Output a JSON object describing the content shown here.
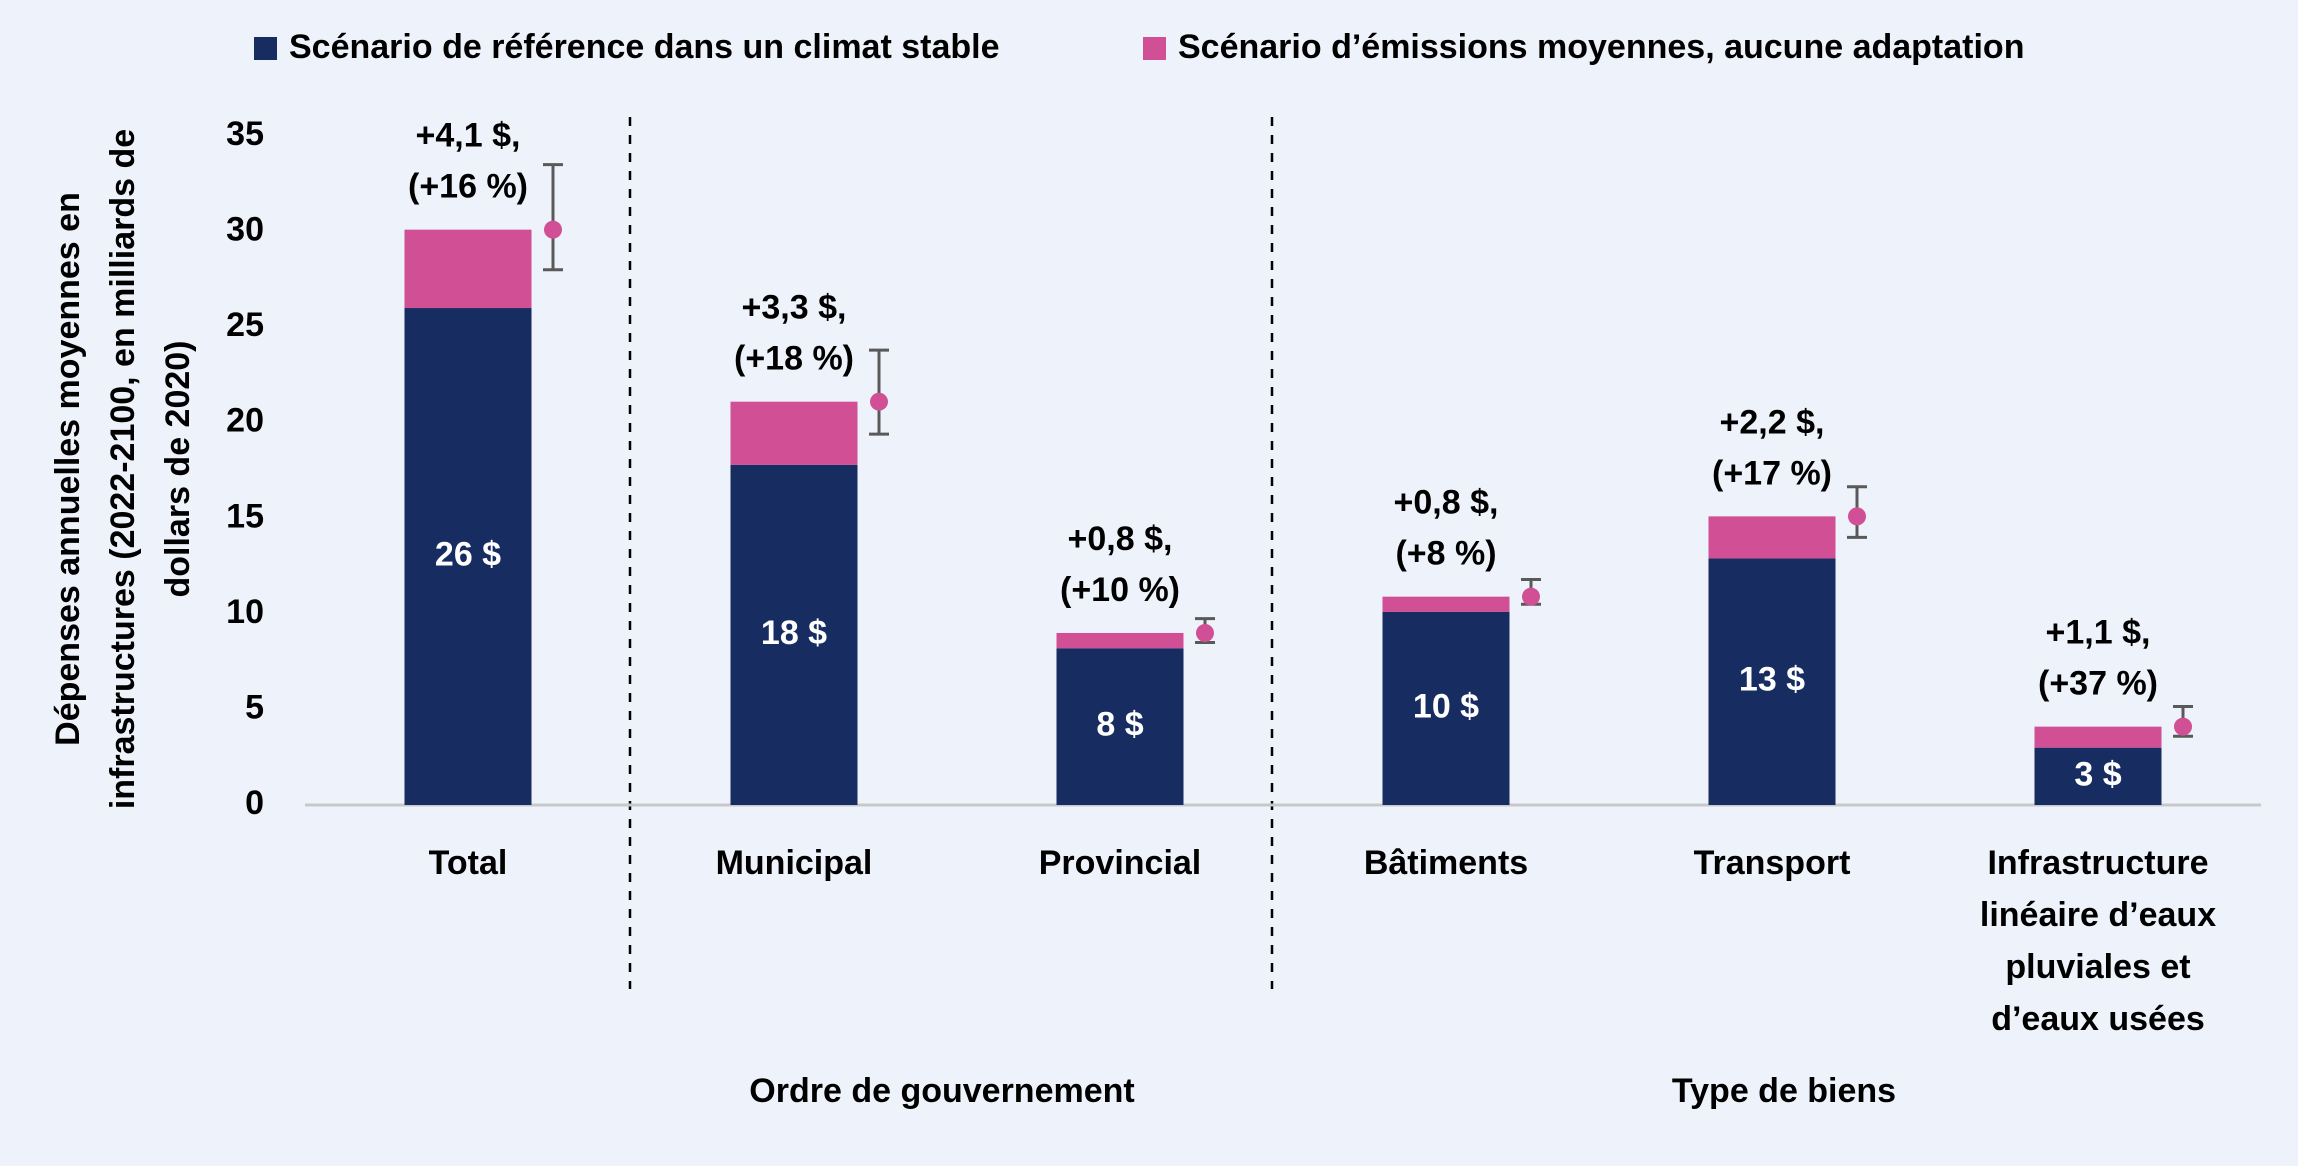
{
  "chart_data": {
    "type": "stacked_bar",
    "y_axis_label": [
      "Dépenses annuelles moyennes en",
      "infrastructures (2022-2100, en milliards de",
      "dollars de 2020)"
    ],
    "categories": [
      "Total",
      "Municipal",
      "Provincial",
      "Bâtiments",
      "Transport",
      "Infrastructure linéaire d’eaux pluviales et d’eaux usées"
    ],
    "group_labels": [
      "Ordre de gouvernement",
      "Type de biens"
    ],
    "series": [
      {
        "name": "Scénario de référence dans un climat stable",
        "color": "#172c61",
        "values": [
          26,
          17.8,
          8.2,
          10.1,
          12.9,
          3.0
        ],
        "value_labels": [
          "26 $",
          "18 $",
          "8 $",
          "10 $",
          "13 $",
          "3 $"
        ]
      },
      {
        "name": "Scénario d’émissions moyennes, aucune adaptation",
        "color": "#d14f94",
        "values": [
          4.1,
          3.3,
          0.8,
          0.8,
          2.2,
          1.1
        ],
        "value_labels": [
          "+4,1 $,",
          "+3,3 $,",
          "+0,8 $,",
          "+0,8 $,",
          "+2,2 $,",
          "+1,1 $,"
        ],
        "percent_labels": [
          "(+16 %)",
          "(+18 %)",
          "(+10 %)",
          "(+8 %)",
          "(+17 %)",
          "(+37 %)"
        ]
      }
    ],
    "error_bars": {
      "color": "#595959",
      "low": [
        28.0,
        19.4,
        8.5,
        10.5,
        14.0,
        3.6
      ],
      "high": [
        33.5,
        23.8,
        9.75,
        11.8,
        16.65,
        5.15
      ]
    },
    "ylim": [
      0,
      35
    ],
    "yticks": [
      0,
      5,
      10,
      15,
      20,
      25,
      30,
      35
    ],
    "grid": false
  }
}
